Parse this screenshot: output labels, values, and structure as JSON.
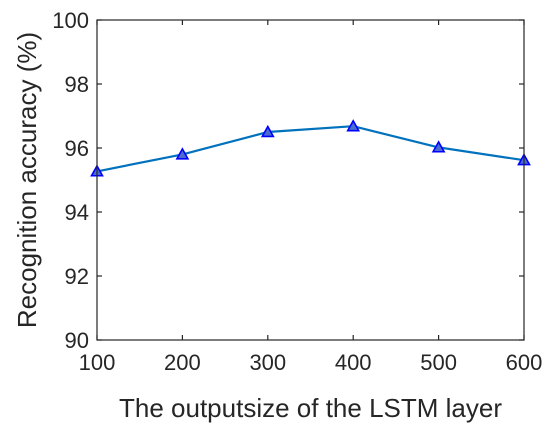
{
  "chart_data": {
    "type": "line",
    "xlabel": "The outputsize of the LSTM layer",
    "ylabel": "Recognition accuracy (%)",
    "xlim": [
      100,
      600
    ],
    "ylim": [
      90,
      100
    ],
    "x_ticks": [
      "100",
      "200",
      "300",
      "400",
      "500",
      "600"
    ],
    "y_ticks": [
      "90",
      "92",
      "94",
      "96",
      "98",
      "100"
    ],
    "grid": false,
    "series": [
      {
        "marker": "triangle",
        "color": "#0072BD",
        "marker_color": "#0000FF",
        "x": [
          100,
          200,
          300,
          400,
          500,
          600
        ],
        "y": [
          95.27,
          95.8,
          96.5,
          96.68,
          96.02,
          95.62
        ]
      }
    ]
  }
}
